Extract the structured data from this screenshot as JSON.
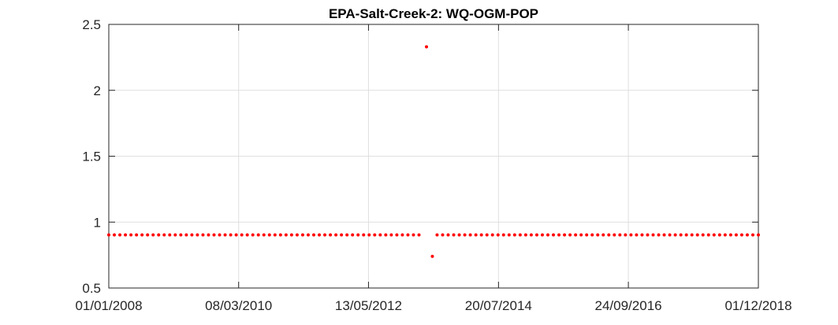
{
  "chart_data": {
    "type": "scatter",
    "title": "EPA-Salt-Creek-2: WQ-OGM-POP",
    "xlabel": "",
    "ylabel": "",
    "x_axis_type": "date",
    "xlim": [
      "2008-01-01",
      "2018-12-01"
    ],
    "ylim": [
      0.5,
      2.5
    ],
    "x_ticks": [
      "01/01/2008",
      "08/03/2010",
      "13/05/2012",
      "20/07/2014",
      "24/09/2016",
      "01/12/2018"
    ],
    "x_tick_dates": [
      "2008-01-01",
      "2010-03-08",
      "2012-05-13",
      "2014-07-20",
      "2016-09-24",
      "2018-12-01"
    ],
    "y_ticks": [
      "0.5",
      "1",
      "1.5",
      "2",
      "2.5"
    ],
    "y_tick_values": [
      0.5,
      1,
      1.5,
      2,
      2.5
    ],
    "grid": true,
    "marker_color": "#ff0000",
    "series": [
      {
        "points": [
          [
            "2008-01-01",
            0.903
          ],
          [
            "2008-02-04",
            0.903
          ],
          [
            "2008-03-09",
            0.903
          ],
          [
            "2008-04-12",
            0.903
          ],
          [
            "2008-05-16",
            0.903
          ],
          [
            "2008-06-19",
            0.903
          ],
          [
            "2008-07-23",
            0.903
          ],
          [
            "2008-08-26",
            0.903
          ],
          [
            "2008-09-29",
            0.903
          ],
          [
            "2008-11-02",
            0.903
          ],
          [
            "2008-12-06",
            0.903
          ],
          [
            "2009-01-09",
            0.903
          ],
          [
            "2009-02-12",
            0.903
          ],
          [
            "2009-03-18",
            0.903
          ],
          [
            "2009-04-21",
            0.903
          ],
          [
            "2009-05-25",
            0.903
          ],
          [
            "2009-06-28",
            0.903
          ],
          [
            "2009-08-01",
            0.903
          ],
          [
            "2009-09-04",
            0.903
          ],
          [
            "2009-10-08",
            0.903
          ],
          [
            "2009-11-11",
            0.903
          ],
          [
            "2009-12-15",
            0.903
          ],
          [
            "2010-01-18",
            0.903
          ],
          [
            "2010-02-21",
            0.903
          ],
          [
            "2010-03-27",
            0.903
          ],
          [
            "2010-04-30",
            0.903
          ],
          [
            "2010-06-03",
            0.903
          ],
          [
            "2010-07-07",
            0.903
          ],
          [
            "2010-08-10",
            0.903
          ],
          [
            "2010-09-13",
            0.903
          ],
          [
            "2010-10-17",
            0.903
          ],
          [
            "2010-11-20",
            0.903
          ],
          [
            "2010-12-24",
            0.903
          ],
          [
            "2011-01-27",
            0.903
          ],
          [
            "2011-03-02",
            0.903
          ],
          [
            "2011-04-05",
            0.903
          ],
          [
            "2011-05-09",
            0.903
          ],
          [
            "2011-06-12",
            0.903
          ],
          [
            "2011-07-16",
            0.903
          ],
          [
            "2011-08-19",
            0.903
          ],
          [
            "2011-09-22",
            0.903
          ],
          [
            "2011-10-26",
            0.903
          ],
          [
            "2011-11-29",
            0.903
          ],
          [
            "2012-01-02",
            0.903
          ],
          [
            "2012-02-05",
            0.903
          ],
          [
            "2012-03-10",
            0.903
          ],
          [
            "2012-04-13",
            0.903
          ],
          [
            "2012-05-17",
            0.903
          ],
          [
            "2012-06-20",
            0.903
          ],
          [
            "2012-07-24",
            0.903
          ],
          [
            "2012-08-27",
            0.903
          ],
          [
            "2012-09-30",
            0.903
          ],
          [
            "2012-11-03",
            0.903
          ],
          [
            "2012-12-07",
            0.903
          ],
          [
            "2013-01-10",
            0.903
          ],
          [
            "2013-02-13",
            0.903
          ],
          [
            "2013-03-19",
            0.903
          ],
          [
            "2013-05-04",
            2.33
          ],
          [
            "2013-06-09",
            0.74
          ],
          [
            "2013-07-08",
            0.903
          ],
          [
            "2013-08-11",
            0.903
          ],
          [
            "2013-09-14",
            0.903
          ],
          [
            "2013-10-18",
            0.903
          ],
          [
            "2013-11-21",
            0.903
          ],
          [
            "2013-12-25",
            0.903
          ],
          [
            "2014-01-28",
            0.903
          ],
          [
            "2014-03-03",
            0.903
          ],
          [
            "2014-04-06",
            0.903
          ],
          [
            "2014-05-10",
            0.903
          ],
          [
            "2014-06-13",
            0.903
          ],
          [
            "2014-07-17",
            0.903
          ],
          [
            "2014-08-20",
            0.903
          ],
          [
            "2014-09-23",
            0.903
          ],
          [
            "2014-10-27",
            0.903
          ],
          [
            "2014-11-30",
            0.903
          ],
          [
            "2015-01-03",
            0.903
          ],
          [
            "2015-02-06",
            0.903
          ],
          [
            "2015-03-12",
            0.903
          ],
          [
            "2015-04-15",
            0.903
          ],
          [
            "2015-05-19",
            0.903
          ],
          [
            "2015-06-22",
            0.903
          ],
          [
            "2015-07-26",
            0.903
          ],
          [
            "2015-08-29",
            0.903
          ],
          [
            "2015-10-02",
            0.903
          ],
          [
            "2015-11-05",
            0.903
          ],
          [
            "2015-12-09",
            0.903
          ],
          [
            "2016-01-12",
            0.903
          ],
          [
            "2016-02-15",
            0.903
          ],
          [
            "2016-03-20",
            0.903
          ],
          [
            "2016-04-23",
            0.903
          ],
          [
            "2016-05-27",
            0.903
          ],
          [
            "2016-06-30",
            0.903
          ],
          [
            "2016-08-03",
            0.903
          ],
          [
            "2016-09-06",
            0.903
          ],
          [
            "2016-10-10",
            0.903
          ],
          [
            "2016-11-13",
            0.903
          ],
          [
            "2016-12-17",
            0.903
          ],
          [
            "2017-01-20",
            0.903
          ],
          [
            "2017-02-23",
            0.903
          ],
          [
            "2017-03-29",
            0.903
          ],
          [
            "2017-05-02",
            0.903
          ],
          [
            "2017-06-05",
            0.903
          ],
          [
            "2017-07-09",
            0.903
          ],
          [
            "2017-08-12",
            0.903
          ],
          [
            "2017-09-15",
            0.903
          ],
          [
            "2017-10-19",
            0.903
          ],
          [
            "2017-11-22",
            0.903
          ],
          [
            "2017-12-26",
            0.903
          ],
          [
            "2018-01-29",
            0.903
          ],
          [
            "2018-03-04",
            0.903
          ],
          [
            "2018-04-07",
            0.903
          ],
          [
            "2018-05-11",
            0.903
          ],
          [
            "2018-06-14",
            0.903
          ],
          [
            "2018-07-18",
            0.903
          ],
          [
            "2018-08-21",
            0.903
          ],
          [
            "2018-09-24",
            0.903
          ],
          [
            "2018-10-28",
            0.903
          ],
          [
            "2018-12-01",
            0.903
          ]
        ]
      }
    ]
  }
}
